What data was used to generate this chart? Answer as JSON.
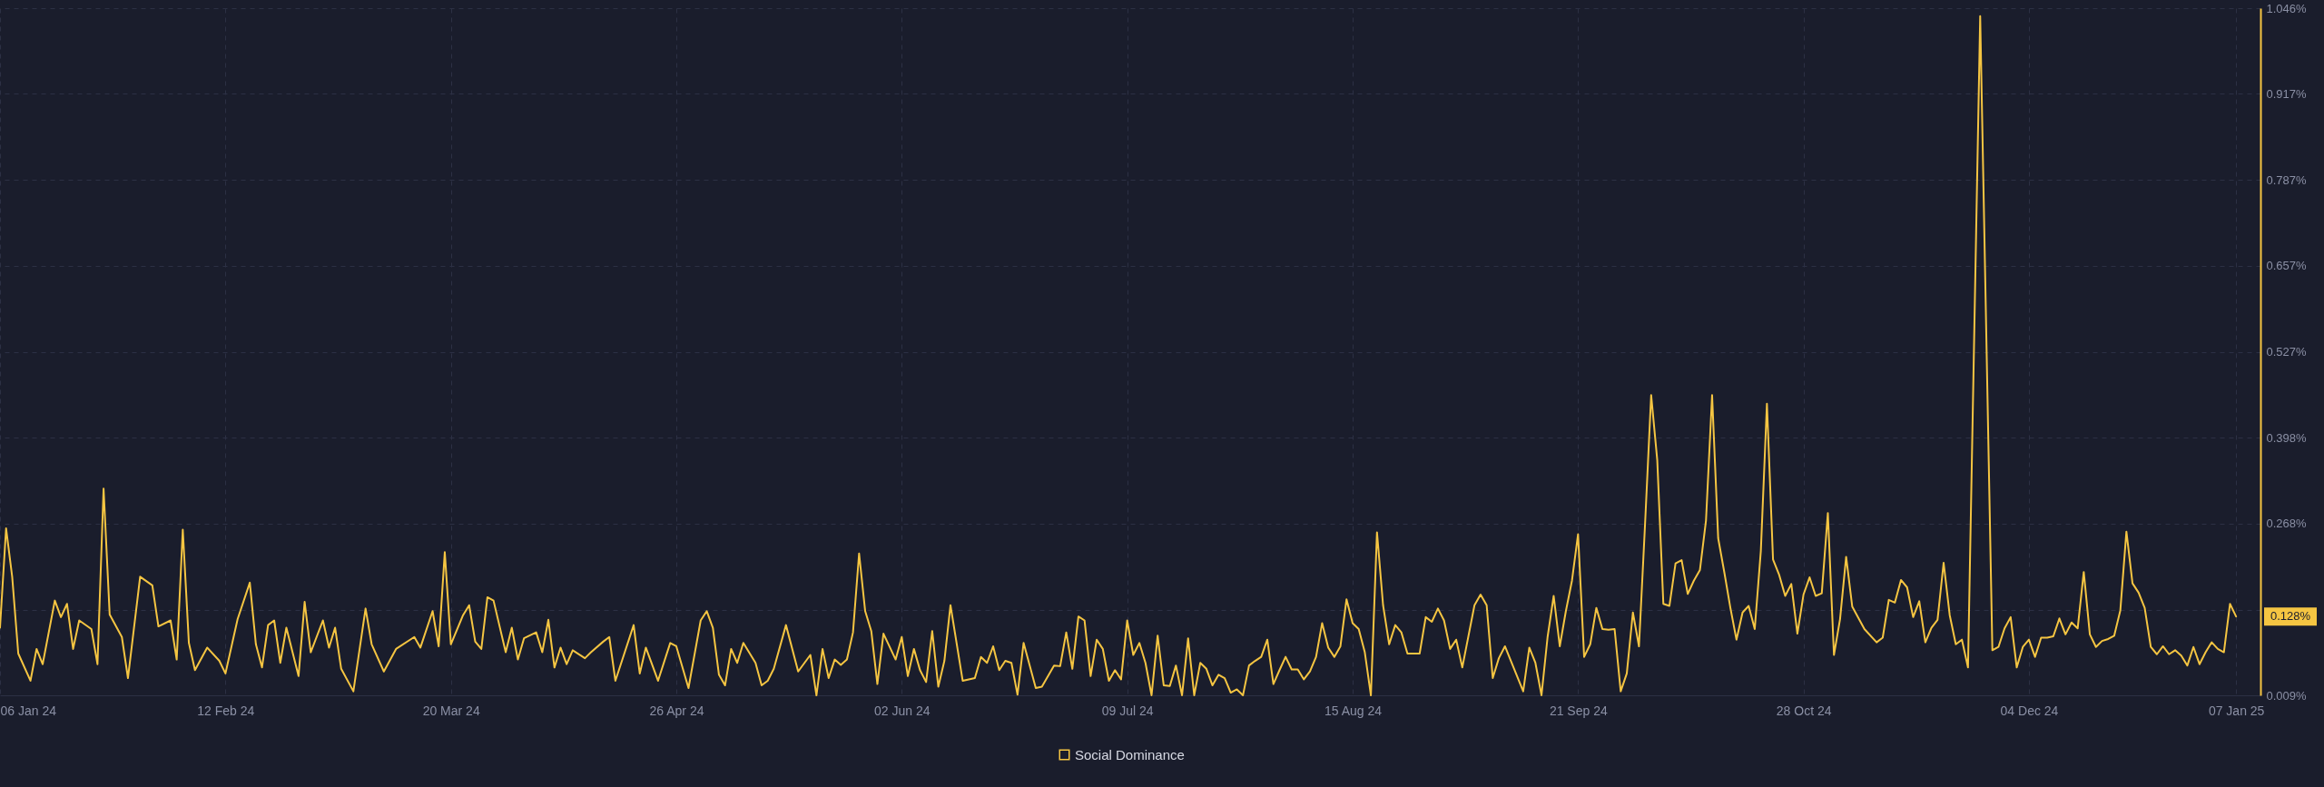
{
  "chart_data": {
    "type": "line",
    "x": [
      "2024-01-06",
      "2024-01-07",
      "2024-01-08",
      "2024-01-09",
      "2024-01-11",
      "2024-01-12",
      "2024-01-13",
      "2024-01-15",
      "2024-01-16",
      "2024-01-17",
      "2024-01-18",
      "2024-01-19",
      "2024-01-21",
      "2024-01-22",
      "2024-01-23",
      "2024-01-24",
      "2024-01-26",
      "2024-01-27",
      "2024-01-29",
      "2024-01-31",
      "2024-02-01",
      "2024-02-03",
      "2024-02-04",
      "2024-02-05",
      "2024-02-06",
      "2024-02-07",
      "2024-02-09",
      "2024-02-11",
      "2024-02-12",
      "2024-02-14",
      "2024-02-16",
      "2024-02-17",
      "2024-02-18",
      "2024-02-19",
      "2024-02-20",
      "2024-02-21",
      "2024-02-22",
      "2024-02-24",
      "2024-02-25",
      "2024-02-26",
      "2024-02-28",
      "2024-02-29",
      "2024-03-01",
      "2024-03-02",
      "2024-03-04",
      "2024-03-06",
      "2024-03-07",
      "2024-03-09",
      "2024-03-11",
      "2024-03-14",
      "2024-03-15",
      "2024-03-17",
      "2024-03-18",
      "2024-03-19",
      "2024-03-20",
      "2024-03-22",
      "2024-03-23",
      "2024-03-24",
      "2024-03-25",
      "2024-03-26",
      "2024-03-27",
      "2024-03-29",
      "2024-03-30",
      "2024-03-31",
      "2024-04-01",
      "2024-04-03",
      "2024-04-04",
      "2024-04-05",
      "2024-04-06",
      "2024-04-07",
      "2024-04-08",
      "2024-04-09",
      "2024-04-11",
      "2024-04-12",
      "2024-04-14",
      "2024-04-15",
      "2024-04-16",
      "2024-04-19",
      "2024-04-20",
      "2024-04-21",
      "2024-04-23",
      "2024-04-25",
      "2024-04-26",
      "2024-04-28",
      "2024-04-30",
      "2024-05-01",
      "2024-05-02",
      "2024-05-03",
      "2024-05-04",
      "2024-05-05",
      "2024-05-06",
      "2024-05-07",
      "2024-05-09",
      "2024-05-10",
      "2024-05-11",
      "2024-05-12",
      "2024-05-14",
      "2024-05-16",
      "2024-05-18",
      "2024-05-19",
      "2024-05-20",
      "2024-05-21",
      "2024-05-22",
      "2024-05-23",
      "2024-05-24",
      "2024-05-25",
      "2024-05-26",
      "2024-05-27",
      "2024-05-28",
      "2024-05-29",
      "2024-05-30",
      "2024-06-01",
      "2024-06-02",
      "2024-06-03",
      "2024-06-04",
      "2024-06-05",
      "2024-06-06",
      "2024-06-07",
      "2024-06-08",
      "2024-06-09",
      "2024-06-10",
      "2024-06-12",
      "2024-06-14",
      "2024-06-15",
      "2024-06-16",
      "2024-06-17",
      "2024-06-18",
      "2024-06-19",
      "2024-06-20",
      "2024-06-21",
      "2024-06-22",
      "2024-06-24",
      "2024-06-25",
      "2024-06-27",
      "2024-06-28",
      "2024-06-29",
      "2024-06-30",
      "2024-07-01",
      "2024-07-02",
      "2024-07-03",
      "2024-07-04",
      "2024-07-05",
      "2024-07-06",
      "2024-07-07",
      "2024-07-08",
      "2024-07-09",
      "2024-07-10",
      "2024-07-11",
      "2024-07-12",
      "2024-07-13",
      "2024-07-14",
      "2024-07-15",
      "2024-07-16",
      "2024-07-17",
      "2024-07-18",
      "2024-07-19",
      "2024-07-20",
      "2024-07-21",
      "2024-07-22",
      "2024-07-23",
      "2024-07-24",
      "2024-07-25",
      "2024-07-26",
      "2024-07-27",
      "2024-07-28",
      "2024-07-29",
      "2024-07-30",
      "2024-07-31",
      "2024-08-01",
      "2024-08-02",
      "2024-08-03",
      "2024-08-04",
      "2024-08-05",
      "2024-08-06",
      "2024-08-07",
      "2024-08-08",
      "2024-08-09",
      "2024-08-10",
      "2024-08-11",
      "2024-08-12",
      "2024-08-13",
      "2024-08-14",
      "2024-08-15",
      "2024-08-16",
      "2024-08-17",
      "2024-08-18",
      "2024-08-19",
      "2024-08-20",
      "2024-08-21",
      "2024-08-22",
      "2024-08-23",
      "2024-08-24",
      "2024-08-26",
      "2024-08-27",
      "2024-08-28",
      "2024-08-29",
      "2024-08-30",
      "2024-08-31",
      "2024-09-01",
      "2024-09-02",
      "2024-09-04",
      "2024-09-05",
      "2024-09-06",
      "2024-09-07",
      "2024-09-08",
      "2024-09-09",
      "2024-09-12",
      "2024-09-13",
      "2024-09-14",
      "2024-09-15",
      "2024-09-16",
      "2024-09-17",
      "2024-09-18",
      "2024-09-19",
      "2024-09-20",
      "2024-09-21",
      "2024-09-22",
      "2024-09-23",
      "2024-09-24",
      "2024-09-25",
      "2024-09-26",
      "2024-09-27",
      "2024-09-28",
      "2024-09-29",
      "2024-09-30",
      "2024-10-01",
      "2024-10-02",
      "2024-10-03",
      "2024-10-04",
      "2024-10-05",
      "2024-10-06",
      "2024-10-07",
      "2024-10-08",
      "2024-10-09",
      "2024-10-10",
      "2024-10-11",
      "2024-10-12",
      "2024-10-13",
      "2024-10-14",
      "2024-10-15",
      "2024-10-16",
      "2024-10-17",
      "2024-10-18",
      "2024-10-19",
      "2024-10-20",
      "2024-10-21",
      "2024-10-22",
      "2024-10-23",
      "2024-10-24",
      "2024-10-25",
      "2024-10-26",
      "2024-10-27",
      "2024-10-28",
      "2024-10-29",
      "2024-10-30",
      "2024-10-31",
      "2024-11-01",
      "2024-11-02",
      "2024-11-03",
      "2024-11-04",
      "2024-11-05",
      "2024-11-07",
      "2024-11-09",
      "2024-11-10",
      "2024-11-11",
      "2024-11-12",
      "2024-11-13",
      "2024-11-14",
      "2024-11-15",
      "2024-11-16",
      "2024-11-17",
      "2024-11-18",
      "2024-11-19",
      "2024-11-20",
      "2024-11-21",
      "2024-11-22",
      "2024-11-23",
      "2024-11-24",
      "2024-11-26",
      "2024-11-28",
      "2024-11-29",
      "2024-11-30",
      "2024-12-01",
      "2024-12-02",
      "2024-12-03",
      "2024-12-04",
      "2024-12-05",
      "2024-12-06",
      "2024-12-07",
      "2024-12-08",
      "2024-12-09",
      "2024-12-10",
      "2024-12-11",
      "2024-12-12",
      "2024-12-13",
      "2024-12-14",
      "2024-12-15",
      "2024-12-16",
      "2024-12-17",
      "2024-12-18",
      "2024-12-19",
      "2024-12-20",
      "2024-12-21",
      "2024-12-22",
      "2024-12-23",
      "2024-12-24",
      "2024-12-25",
      "2024-12-26",
      "2024-12-27",
      "2024-12-28",
      "2024-12-29",
      "2024-12-30",
      "2024-12-31",
      "2025-01-01",
      "2025-01-02",
      "2025-01-03",
      "2025-01-04",
      "2025-01-05",
      "2025-01-06",
      "2025-01-07"
    ],
    "series": [
      {
        "name": "Social Dominance",
        "color": "#f5c542",
        "values": [
          0.111,
          0.261,
          0.188,
          0.072,
          0.031,
          0.079,
          0.056,
          0.152,
          0.127,
          0.147,
          0.079,
          0.122,
          0.109,
          0.056,
          0.321,
          0.131,
          0.097,
          0.035,
          0.188,
          0.175,
          0.113,
          0.122,
          0.063,
          0.259,
          0.088,
          0.047,
          0.081,
          0.061,
          0.042,
          0.124,
          0.179,
          0.086,
          0.051,
          0.115,
          0.122,
          0.058,
          0.111,
          0.038,
          0.15,
          0.074,
          0.122,
          0.081,
          0.111,
          0.049,
          0.015,
          0.14,
          0.086,
          0.045,
          0.079,
          0.097,
          0.081,
          0.136,
          0.083,
          0.225,
          0.086,
          0.13,
          0.145,
          0.09,
          0.079,
          0.157,
          0.152,
          0.074,
          0.111,
          0.063,
          0.095,
          0.104,
          0.074,
          0.123,
          0.051,
          0.081,
          0.056,
          0.077,
          0.065,
          0.074,
          0.09,
          0.097,
          0.031,
          0.115,
          0.042,
          0.081,
          0.031,
          0.088,
          0.083,
          0.02,
          0.122,
          0.136,
          0.111,
          0.04,
          0.024,
          0.079,
          0.058,
          0.088,
          0.058,
          0.024,
          0.031,
          0.049,
          0.115,
          0.045,
          0.07,
          0.009,
          0.079,
          0.035,
          0.063,
          0.055,
          0.063,
          0.104,
          0.223,
          0.136,
          0.106,
          0.026,
          0.102,
          0.063,
          0.097,
          0.038,
          0.079,
          0.047,
          0.029,
          0.106,
          0.022,
          0.061,
          0.145,
          0.031,
          0.035,
          0.067,
          0.058,
          0.083,
          0.047,
          0.061,
          0.058,
          0.01,
          0.088,
          0.02,
          0.022,
          0.054,
          0.053,
          0.104,
          0.049,
          0.128,
          0.122,
          0.038,
          0.093,
          0.079,
          0.031,
          0.047,
          0.033,
          0.122,
          0.07,
          0.088,
          0.058,
          0.009,
          0.099,
          0.024,
          0.023,
          0.054,
          0.009,
          0.095,
          0.009,
          0.058,
          0.049,
          0.024,
          0.04,
          0.035,
          0.013,
          0.018,
          0.009,
          0.054,
          0.061,
          0.067,
          0.093,
          0.026,
          0.047,
          0.067,
          0.048,
          0.048,
          0.033,
          0.045,
          0.067,
          0.118,
          0.081,
          0.067,
          0.083,
          0.154,
          0.118,
          0.109,
          0.074,
          0.009,
          0.255,
          0.145,
          0.086,
          0.115,
          0.104,
          0.072,
          0.072,
          0.127,
          0.12,
          0.14,
          0.122,
          0.079,
          0.093,
          0.051,
          0.145,
          0.161,
          0.145,
          0.035,
          0.065,
          0.083,
          0.015,
          0.081,
          0.058,
          0.009,
          0.097,
          0.159,
          0.083,
          0.136,
          0.182,
          0.252,
          0.067,
          0.086,
          0.141,
          0.109,
          0.108,
          0.109,
          0.015,
          0.042,
          0.134,
          0.083,
          0.268,
          0.462,
          0.364,
          0.147,
          0.144,
          0.208,
          0.213,
          0.162,
          0.182,
          0.198,
          0.273,
          0.462,
          0.246,
          0.195,
          0.141,
          0.093,
          0.134,
          0.144,
          0.109,
          0.227,
          0.449,
          0.214,
          0.191,
          0.159,
          0.177,
          0.102,
          0.161,
          0.187,
          0.159,
          0.163,
          0.284,
          0.07,
          0.124,
          0.218,
          0.143,
          0.109,
          0.089,
          0.096,
          0.153,
          0.149,
          0.183,
          0.172,
          0.127,
          0.151,
          0.089,
          0.111,
          0.123,
          0.209,
          0.13,
          0.086,
          0.093,
          0.051,
          1.034,
          0.077,
          0.082,
          0.11,
          0.127,
          0.051,
          0.082,
          0.093,
          0.067,
          0.096,
          0.096,
          0.098,
          0.125,
          0.101,
          0.119,
          0.11,
          0.195,
          0.101,
          0.082,
          0.091,
          0.094,
          0.099,
          0.137,
          0.256,
          0.178,
          0.164,
          0.141,
          0.082,
          0.071,
          0.083,
          0.071,
          0.077,
          0.069,
          0.054,
          0.082,
          0.056,
          0.074,
          0.089,
          0.079,
          0.074,
          0.147,
          0.128
        ]
      }
    ],
    "xlim": [
      "2024-01-06",
      "2025-01-11"
    ],
    "xticks": [
      {
        "value": "2024-01-06",
        "label": "06 Jan 24"
      },
      {
        "value": "2024-02-12",
        "label": "12 Feb 24"
      },
      {
        "value": "2024-03-20",
        "label": "20 Mar 24"
      },
      {
        "value": "2024-04-26",
        "label": "26 Apr 24"
      },
      {
        "value": "2024-06-02",
        "label": "02 Jun 24"
      },
      {
        "value": "2024-07-09",
        "label": "09 Jul 24"
      },
      {
        "value": "2024-08-15",
        "label": "15 Aug 24"
      },
      {
        "value": "2024-09-21",
        "label": "21 Sep 24"
      },
      {
        "value": "2024-10-28",
        "label": "28 Oct 24"
      },
      {
        "value": "2024-12-04",
        "label": "04 Dec 24"
      },
      {
        "value": "2025-01-07",
        "label": "07 Jan 25"
      }
    ],
    "ylim": [
      0.009,
      1.046
    ],
    "yticks": [
      {
        "value": 0.009,
        "label": "0.009%"
      },
      {
        "value": 0.138,
        "label": null
      },
      {
        "value": 0.268,
        "label": "0.268%"
      },
      {
        "value": 0.398,
        "label": "0.398%"
      },
      {
        "value": 0.527,
        "label": "0.527%"
      },
      {
        "value": 0.657,
        "label": "0.657%"
      },
      {
        "value": 0.787,
        "label": "0.787%"
      },
      {
        "value": 0.917,
        "label": "0.917%"
      },
      {
        "value": 1.046,
        "label": "1.046%"
      }
    ],
    "grid": true,
    "legend": "bottom",
    "line_style": "solid",
    "annotations": [
      "0.128%"
    ]
  }
}
